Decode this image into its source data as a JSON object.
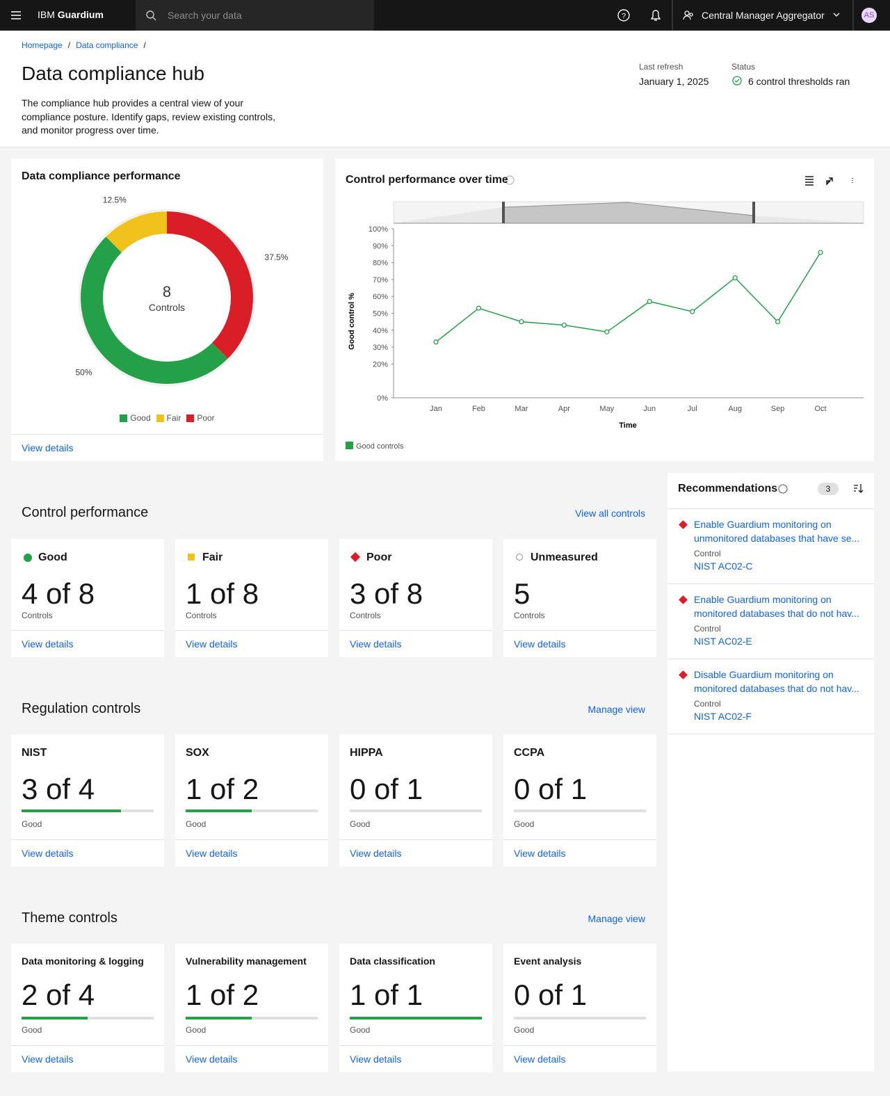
{
  "header": {
    "menu_brand": "IBM",
    "menu_product": "Guardium",
    "search_placeholder": "Search your data",
    "context": "Central Manager Aggregator",
    "avatar": "AS"
  },
  "breadcrumb": {
    "items": [
      "Homepage",
      "Data compliance"
    ],
    "separator": "/"
  },
  "page": {
    "title": "Data compliance hub",
    "description": "The compliance hub provides a central view of your compliance posture. Identify gaps, review existing controls, and monitor progress over time.",
    "last_refresh_label": "Last refresh",
    "last_refresh": "January 1, 2025",
    "status_label": "Status",
    "status": "6 control thresholds ran"
  },
  "chart_data": [
    {
      "type": "pie",
      "title": "Data compliance performance",
      "center_value": 8,
      "center_label": "Controls",
      "categories": [
        "Good",
        "Fair",
        "Poor"
      ],
      "values": [
        50,
        12.5,
        37.5
      ],
      "value_labels": [
        "50%",
        "12.5%",
        "37.5%"
      ],
      "colors": [
        "#24a148",
        "#f1c21b",
        "#da1e28"
      ],
      "link": "View details"
    },
    {
      "type": "line",
      "title": "Control performance over time",
      "categories": [
        "Jan",
        "Feb",
        "Mar",
        "Apr",
        "May",
        "Jun",
        "Jul",
        "Aug",
        "Sep",
        "Oct"
      ],
      "series": [
        {
          "name": "Good controls",
          "color": "#24a148",
          "values": [
            33,
            53,
            45,
            43,
            39,
            57,
            51,
            71,
            45,
            86
          ]
        }
      ],
      "ylim": [
        0,
        100
      ],
      "yticks": [
        {
          "value": 0,
          "label": "0%"
        },
        {
          "value": 20,
          "label": "20%"
        },
        {
          "value": 30,
          "label": "30%"
        },
        {
          "value": 40,
          "label": "40%"
        },
        {
          "value": 50,
          "label": "50%"
        },
        {
          "value": 60,
          "label": "60%"
        },
        {
          "value": 70,
          "label": "70%"
        },
        {
          "value": 80,
          "label": "80%"
        },
        {
          "value": 90,
          "label": "90%"
        },
        {
          "value": 100,
          "label": "100%"
        }
      ],
      "y_label": "Good control %",
      "x_label": "Time"
    }
  ],
  "control_performance": {
    "title": "Control performance",
    "link": "View all controls",
    "cards": [
      {
        "label": "Good",
        "value": "4 of 8",
        "unit": "Controls",
        "link": "View details",
        "color": "#24a148"
      },
      {
        "label": "Fair",
        "value": "1 of 8",
        "unit": "Controls",
        "link": "View details",
        "color": "#f1c21b"
      },
      {
        "label": "Poor",
        "value": "3 of 8",
        "unit": "Controls",
        "link": "View details",
        "color": "#da1e28"
      },
      {
        "label": "Unmeasured",
        "value": "5",
        "unit": "Controls",
        "link": "View details",
        "color": "#8d8d8d"
      }
    ]
  },
  "regulation_controls": {
    "title": "Regulation controls",
    "link": "Manage view",
    "cards": [
      {
        "label": "NIST",
        "value": "3 of 4",
        "good": 3,
        "total": 4,
        "unit": "Good",
        "link": "View details"
      },
      {
        "label": "SOX",
        "value": "1 of 2",
        "good": 1,
        "total": 2,
        "unit": "Good",
        "link": "View details"
      },
      {
        "label": "HIPPA",
        "value": "0 of 1",
        "good": 0,
        "total": 1,
        "unit": "Good",
        "link": "View details"
      },
      {
        "label": "CCPA",
        "value": "0 of 1",
        "good": 0,
        "total": 1,
        "unit": "Good",
        "link": "View details"
      }
    ]
  },
  "theme_controls": {
    "title": "Theme controls",
    "link": "Manage view",
    "cards": [
      {
        "label": "Data monitoring & logging",
        "value": "2 of 4",
        "good": 2,
        "total": 4,
        "unit": "Good",
        "link": "View details"
      },
      {
        "label": "Vulnerability management",
        "value": "1 of 2",
        "good": 1,
        "total": 2,
        "unit": "Good",
        "link": "View details"
      },
      {
        "label": "Data classification",
        "value": "1 of 1",
        "good": 1,
        "total": 1,
        "unit": "Good",
        "link": "View details"
      },
      {
        "label": "Event analysis",
        "value": "0 of 1",
        "good": 0,
        "total": 1,
        "unit": "Good",
        "link": "View details"
      }
    ]
  },
  "recommendations": {
    "title": "Recommendations",
    "count": 3,
    "items": [
      {
        "title": "Enable Guardium monitoring on unmonitored databases that have se...",
        "control_label": "Control",
        "control": "NIST AC02-C"
      },
      {
        "title": "Enable Guardium monitoring on monitored databases that do not hav...",
        "control_label": "Control",
        "control": "NIST AC02-E"
      },
      {
        "title": "Disable Guardium monitoring on monitored databases that do not hav...",
        "control_label": "Control",
        "control": "NIST AC02-F"
      }
    ]
  }
}
